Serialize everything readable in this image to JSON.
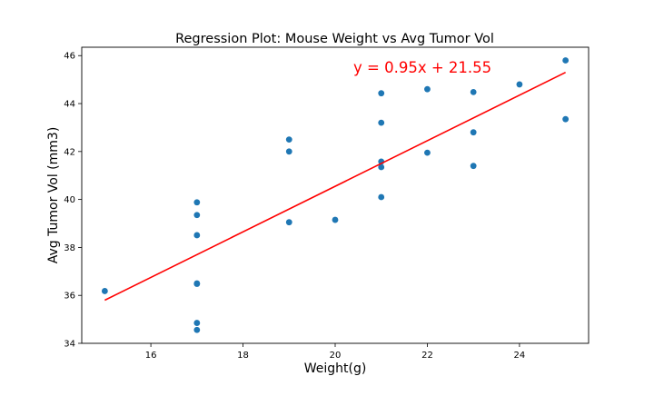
{
  "chart_data": {
    "type": "scatter",
    "title": "Regression Plot: Mouse Weight vs Avg Tumor Vol",
    "xlabel": "Weight(g)",
    "ylabel": "Avg Tumor Vol (mm3)",
    "xlim": [
      14.5,
      25.5
    ],
    "ylim": [
      34,
      46.35
    ],
    "xticks": [
      16,
      18,
      20,
      22,
      24
    ],
    "yticks": [
      34,
      36,
      38,
      40,
      42,
      44,
      46
    ],
    "grid": false,
    "point_color": "#1f77b4",
    "regression": {
      "equation_label": "y = 0.95x + 21.55",
      "slope": 0.95,
      "intercept": 21.55,
      "x_range": [
        15,
        25
      ],
      "color": "#ff0000"
    },
    "points": [
      {
        "x": 15,
        "y": 36.18
      },
      {
        "x": 17,
        "y": 39.88
      },
      {
        "x": 17,
        "y": 39.35
      },
      {
        "x": 17,
        "y": 38.51
      },
      {
        "x": 17,
        "y": 36.5
      },
      {
        "x": 17,
        "y": 36.48
      },
      {
        "x": 17,
        "y": 34.85
      },
      {
        "x": 17,
        "y": 34.56
      },
      {
        "x": 19,
        "y": 42.5
      },
      {
        "x": 19,
        "y": 42.0
      },
      {
        "x": 19,
        "y": 39.05
      },
      {
        "x": 20,
        "y": 39.15
      },
      {
        "x": 21,
        "y": 44.43
      },
      {
        "x": 21,
        "y": 43.2
      },
      {
        "x": 21,
        "y": 41.58
      },
      {
        "x": 21,
        "y": 41.35
      },
      {
        "x": 21,
        "y": 40.1
      },
      {
        "x": 22,
        "y": 44.6
      },
      {
        "x": 22,
        "y": 41.95
      },
      {
        "x": 23,
        "y": 44.48
      },
      {
        "x": 23,
        "y": 42.8
      },
      {
        "x": 23,
        "y": 41.4
      },
      {
        "x": 24,
        "y": 44.8
      },
      {
        "x": 25,
        "y": 45.8
      },
      {
        "x": 25,
        "y": 43.35
      }
    ]
  }
}
